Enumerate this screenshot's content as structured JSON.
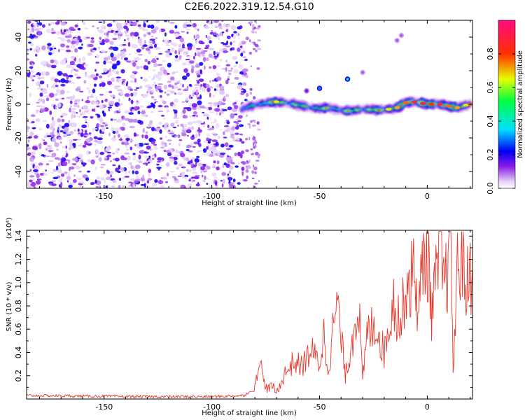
{
  "title": "C2E6.2022.319.12.54.G10",
  "top_panel": {
    "xlabel": "Height of straight line (km)",
    "ylabel": "Frequency (Hz)",
    "xticks": [
      "-150",
      "-100",
      "-50",
      "0"
    ],
    "yticks": [
      "40",
      "20",
      "0",
      "-20",
      "-40"
    ],
    "colorbar": {
      "label": "Normalized spectral amplitude",
      "ticks": [
        "0.0",
        "0.2",
        "0.4",
        "0.6",
        "0.8"
      ]
    }
  },
  "bottom_panel": {
    "xlabel": "Height of straight line (km)",
    "ylabel": "SNR (10 * v/v)",
    "scale_label": "(x10⁴)",
    "xticks": [
      "-150",
      "-100",
      "-50",
      "0"
    ],
    "yticks": [
      "1.4",
      "1.2",
      "1.0",
      "0.8",
      "0.6",
      "0.4",
      "0.2"
    ]
  },
  "chart_data": [
    {
      "type": "heatmap",
      "title": "C2E6.2022.319.12.54.G10",
      "xlabel": "Height of straight line (km)",
      "ylabel": "Frequency (Hz)",
      "xlim": [
        -186,
        21
      ],
      "ylim": [
        -50,
        50
      ],
      "colorbar_label": "Normalized spectral amplitude",
      "colorbar_range": [
        0.0,
        1.0
      ],
      "noise_region_x": [
        -186,
        -84
      ],
      "signal_trace": {
        "x": [
          -86,
          -82,
          -78,
          -74,
          -70,
          -66,
          -62,
          -58,
          -54,
          -50,
          -46,
          -42,
          -38,
          -34,
          -30,
          -26,
          -22,
          -18,
          -14,
          -10,
          -6,
          -2,
          2,
          6,
          10,
          14,
          18,
          20
        ],
        "freq": [
          -3,
          -1,
          0,
          1,
          1.5,
          1,
          0,
          -1,
          -2,
          -2.5,
          -2,
          -3,
          -4,
          -3.5,
          -3,
          -3,
          -3.5,
          -3,
          -2,
          1,
          1.5,
          0.5,
          0,
          0,
          -1,
          -2,
          -0.5,
          0
        ],
        "amplitude": [
          0.25,
          0.35,
          0.45,
          0.6,
          0.7,
          0.55,
          0.5,
          0.45,
          0.5,
          0.55,
          0.5,
          0.5,
          0.55,
          0.5,
          0.6,
          0.55,
          0.6,
          0.7,
          0.75,
          0.8,
          0.9,
          0.95,
          0.85,
          0.9,
          0.8,
          0.75,
          0.7,
          0.8
        ]
      },
      "features": [
        {
          "x": -56,
          "y": 8,
          "amplitude": 0.15
        },
        {
          "x": -50,
          "y": 9.5,
          "amplitude": 0.3
        },
        {
          "x": -37,
          "y": 15,
          "amplitude": 0.35
        },
        {
          "x": -30,
          "y": 19,
          "amplitude": 0.1
        },
        {
          "x": -14,
          "y": 38,
          "amplitude": 0.1
        },
        {
          "x": -12,
          "y": 41,
          "amplitude": 0.1
        }
      ]
    },
    {
      "type": "line",
      "xlabel": "Height of straight line (km)",
      "ylabel": "SNR (10 * v/v)",
      "xlim": [
        -186,
        21
      ],
      "ylim": [
        0,
        14500
      ],
      "series": [
        {
          "color": "#e8382c",
          "x": [
            -186,
            -160,
            -130,
            -100,
            -85,
            -80,
            -78,
            -76,
            -74,
            -72,
            -70,
            -66,
            -62,
            -58,
            -54,
            -50,
            -48,
            -46,
            -42,
            -38,
            -36,
            -32,
            -30,
            -28,
            -24,
            -20,
            -16,
            -12,
            -10,
            -8,
            -6,
            -4,
            -2,
            0,
            2,
            4,
            6,
            8,
            10,
            11,
            12,
            14,
            16,
            18,
            21
          ],
          "y": [
            300,
            250,
            200,
            200,
            300,
            1000,
            3800,
            1500,
            800,
            1200,
            500,
            2200,
            3200,
            2800,
            4200,
            3000,
            5500,
            2500,
            8400,
            2000,
            3800,
            8600,
            1500,
            5500,
            6600,
            3900,
            8500,
            6500,
            10300,
            9800,
            11200,
            7400,
            11800,
            12600,
            7600,
            10000,
            13000,
            9500,
            11800,
            14500,
            2400,
            11000,
            12800,
            9600,
            11200
          ]
        }
      ]
    }
  ]
}
